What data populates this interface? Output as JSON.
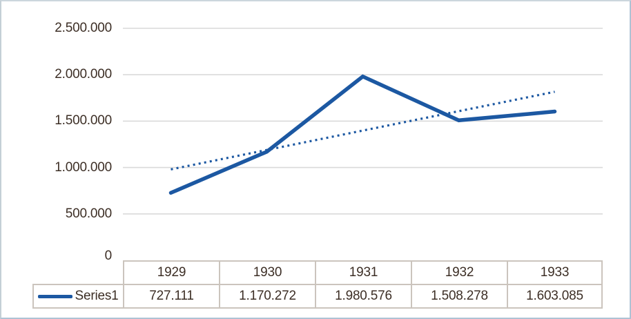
{
  "chart_data": {
    "type": "line",
    "title": "",
    "categories": [
      "1929",
      "1930",
      "1931",
      "1932",
      "1933"
    ],
    "series": [
      {
        "name": "Series1",
        "values": [
          727111,
          1170272,
          1980576,
          1508278,
          1603085
        ],
        "color": "#1c58a2",
        "style": "solid"
      }
    ],
    "trendline": {
      "based_on": "Series1",
      "fit": "linear",
      "style": "dotted",
      "color": "#1c58a2"
    },
    "xlabel": "",
    "ylabel": "",
    "ylim": [
      0,
      2500000
    ],
    "y_axis": {
      "min": 0,
      "max": 2500000,
      "tick_interval": 500000,
      "tick_labels": [
        "2.500.000",
        "2.000.000",
        "1.500.000",
        "1.000.000",
        "500.000",
        "0"
      ]
    },
    "grid": true,
    "legend_position": "data-table-below-axis"
  },
  "data_table": {
    "legend_label": "Series1",
    "columns": [
      "1929",
      "1930",
      "1931",
      "1932",
      "1933"
    ],
    "values": [
      "727.111",
      "1.170.272",
      "1.980.576",
      "1.508.278",
      "1.603.085"
    ]
  },
  "colors": {
    "series_line": "#1c58a2",
    "trendline": "#1c58a2",
    "gridline": "#d9d9d9",
    "table_border": "#cbc4bd",
    "text": "#3c2e25",
    "frame_border": "#aec2d4",
    "background": "#ffffff"
  }
}
